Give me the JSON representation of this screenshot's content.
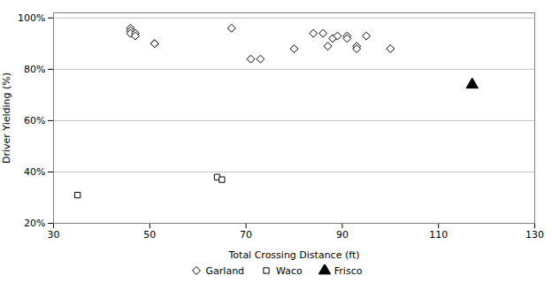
{
  "chart_data": {
    "type": "scatter",
    "xlabel": "Total Crossing Distance (ft)",
    "ylabel": "Driver Yielding (%)",
    "xlim": [
      30,
      130
    ],
    "ylim": [
      0.2,
      1.02
    ],
    "xticks": [
      30,
      50,
      70,
      90,
      110,
      130
    ],
    "yticks": [
      {
        "value": 0.2,
        "label": "20%"
      },
      {
        "value": 0.4,
        "label": "40%"
      },
      {
        "value": 0.6,
        "label": "60%"
      },
      {
        "value": 0.8,
        "label": "80%"
      },
      {
        "value": 1.0,
        "label": "100%"
      }
    ],
    "grid": true,
    "legend": "bottom",
    "series": [
      {
        "name": "Garland",
        "color": "#000000",
        "marker": "open-diamond",
        "x": [
          46,
          46,
          46,
          47,
          47,
          51,
          51,
          67,
          71,
          73,
          80,
          84,
          86,
          87,
          88,
          89,
          91,
          91,
          93,
          93,
          95,
          100
        ],
        "values": [
          0.96,
          0.95,
          0.94,
          0.94,
          0.93,
          0.9,
          0.9,
          0.96,
          0.84,
          0.84,
          0.88,
          0.94,
          0.94,
          0.89,
          0.92,
          0.93,
          0.93,
          0.92,
          0.89,
          0.88,
          0.93,
          0.88
        ]
      },
      {
        "name": "Waco",
        "color": "#000000",
        "marker": "open-square",
        "x": [
          35,
          64,
          65
        ],
        "values": [
          0.31,
          0.38,
          0.37
        ]
      },
      {
        "name": "Frisco",
        "color": "#000000",
        "marker": "triangle",
        "x": [
          117
        ],
        "values": [
          0.74
        ]
      }
    ]
  }
}
